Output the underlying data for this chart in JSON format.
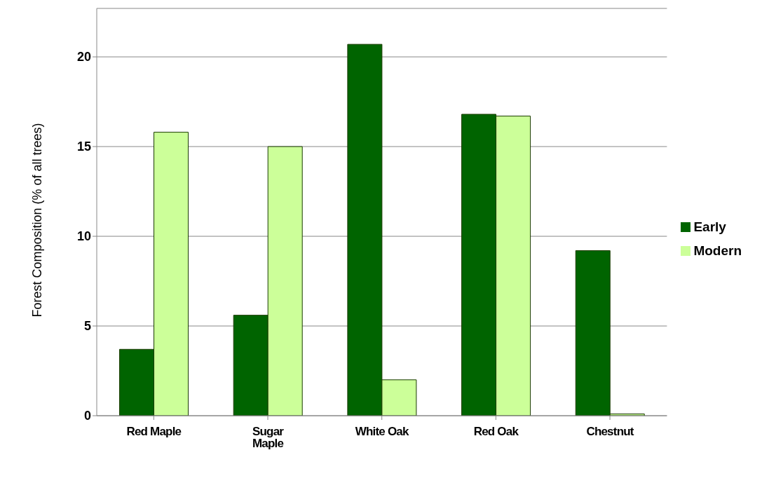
{
  "chart_data": {
    "type": "bar",
    "ylabel": "Forest Composition (% of all trees)",
    "categories": [
      "Red Maple",
      "Sugar Maple",
      "White Oak",
      "Red Oak",
      "Chestnut"
    ],
    "series": [
      {
        "name": "Early",
        "color": "#006400",
        "values": [
          3.7,
          5.6,
          20.7,
          16.8,
          9.2
        ]
      },
      {
        "name": "Modern",
        "color": "#ccff99",
        "values": [
          15.8,
          15.0,
          2.0,
          16.7,
          0.1
        ]
      }
    ],
    "ylim": [
      0,
      22.7
    ],
    "yticks": [
      0,
      5,
      10,
      15,
      20
    ],
    "grid": "y",
    "legend": "right"
  }
}
